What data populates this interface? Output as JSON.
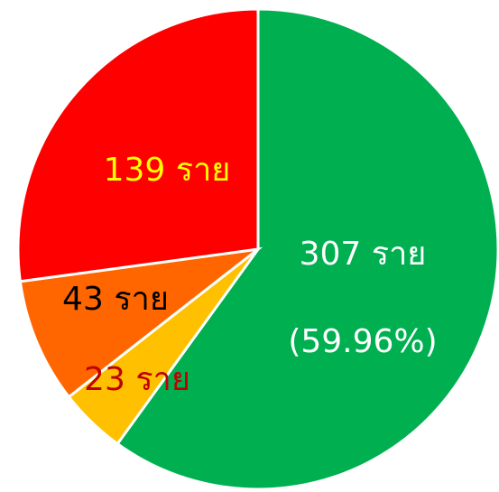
{
  "chart_data": {
    "type": "pie",
    "categories": [
      null,
      null,
      null,
      null
    ],
    "values": [
      307,
      23,
      43,
      139
    ],
    "value_labels": [
      "307 ราย",
      "23 ราย",
      "43 ราย",
      "139 ราย"
    ],
    "annotation": "(59.96%)",
    "colors": [
      "#00b050",
      "#ffc000",
      "#ff6600",
      "#ff0000"
    ],
    "label_colors": [
      "#ffffff",
      "#c00000",
      "#000000",
      "#ffff00"
    ]
  }
}
